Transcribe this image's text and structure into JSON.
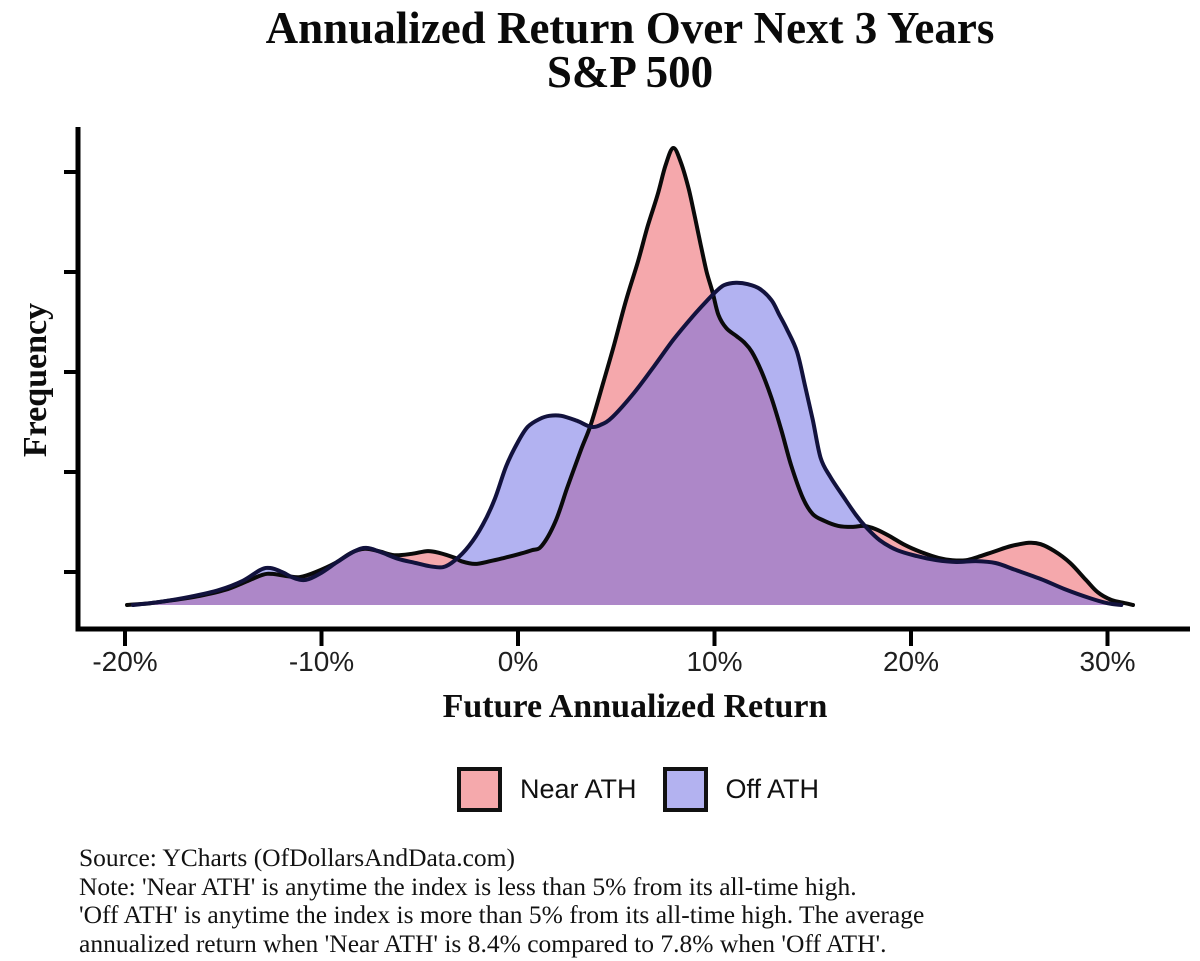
{
  "title": {
    "line1": "Annualized Return Over Next 3 Years",
    "line2": "S&P 500"
  },
  "chart_data": {
    "type": "area",
    "subtype": "kernel-density",
    "title": "Annualized Return Over Next 3 Years",
    "subtitle": "S&P 500",
    "xlabel": "Future Annualized Return",
    "ylabel": "Frequency",
    "xlim": [
      -22,
      34
    ],
    "ylim": [
      0,
      1.05
    ],
    "grid": false,
    "legend_position": "bottom-center",
    "x_ticks": [
      {
        "value": -20,
        "label": "-20%"
      },
      {
        "value": -10,
        "label": "-10%"
      },
      {
        "value": 0,
        "label": "0%"
      },
      {
        "value": 10,
        "label": "10%"
      },
      {
        "value": 20,
        "label": "20%"
      },
      {
        "value": 30,
        "label": "30%"
      }
    ],
    "y_axis": {
      "label": "Frequency",
      "unlabeled_tick_count": 5
    },
    "series": [
      {
        "name": "Near ATH",
        "fill": "rgba(235,81,89,0.5)",
        "stroke": "#0a0a0a",
        "swatch": "#F5A9AC",
        "points": [
          [
            -19.9,
            0
          ],
          [
            -18.7,
            0.004
          ],
          [
            -17.5,
            0.011
          ],
          [
            -16.2,
            0.02
          ],
          [
            -14.9,
            0.033
          ],
          [
            -13.9,
            0.05
          ],
          [
            -13,
            0.066
          ],
          [
            -12.5,
            0.068
          ],
          [
            -11.7,
            0.063
          ],
          [
            -11.1,
            0.061
          ],
          [
            -10.3,
            0.072
          ],
          [
            -9.3,
            0.092
          ],
          [
            -8.5,
            0.114
          ],
          [
            -7.8,
            0.123
          ],
          [
            -7.1,
            0.118
          ],
          [
            -6.3,
            0.109
          ],
          [
            -5.4,
            0.112
          ],
          [
            -4.6,
            0.118
          ],
          [
            -4,
            0.114
          ],
          [
            -3.2,
            0.103
          ],
          [
            -2.9,
            0.096
          ],
          [
            -2.2,
            0.09
          ],
          [
            -1.4,
            0.096
          ],
          [
            -0.7,
            0.103
          ],
          [
            0.1,
            0.112
          ],
          [
            0.7,
            0.12
          ],
          [
            1.2,
            0.129
          ],
          [
            1.9,
            0.182
          ],
          [
            2.5,
            0.256
          ],
          [
            3.2,
            0.339
          ],
          [
            3.7,
            0.394
          ],
          [
            4.3,
            0.481
          ],
          [
            4.9,
            0.571
          ],
          [
            5.5,
            0.667
          ],
          [
            6.1,
            0.751
          ],
          [
            6.6,
            0.829
          ],
          [
            7.1,
            0.897
          ],
          [
            7.5,
            0.961
          ],
          [
            7.9,
            1
          ],
          [
            8.3,
            0.967
          ],
          [
            8.7,
            0.908
          ],
          [
            9,
            0.849
          ],
          [
            9.3,
            0.788
          ],
          [
            9.6,
            0.729
          ],
          [
            9.9,
            0.685
          ],
          [
            10.2,
            0.635
          ],
          [
            10.6,
            0.606
          ],
          [
            11.1,
            0.589
          ],
          [
            11.5,
            0.575
          ],
          [
            11.9,
            0.554
          ],
          [
            12.4,
            0.51
          ],
          [
            12.9,
            0.453
          ],
          [
            13.4,
            0.383
          ],
          [
            13.9,
            0.306
          ],
          [
            14.5,
            0.234
          ],
          [
            15,
            0.199
          ],
          [
            15.6,
            0.184
          ],
          [
            16.3,
            0.173
          ],
          [
            17,
            0.171
          ],
          [
            17.6,
            0.173
          ],
          [
            18.2,
            0.166
          ],
          [
            18.9,
            0.151
          ],
          [
            19.7,
            0.131
          ],
          [
            20.5,
            0.116
          ],
          [
            21.4,
            0.103
          ],
          [
            22.1,
            0.098
          ],
          [
            22.8,
            0.098
          ],
          [
            23.4,
            0.105
          ],
          [
            24.3,
            0.118
          ],
          [
            25.1,
            0.129
          ],
          [
            26,
            0.136
          ],
          [
            26.6,
            0.133
          ],
          [
            27.3,
            0.118
          ],
          [
            28.1,
            0.092
          ],
          [
            28.9,
            0.055
          ],
          [
            29.5,
            0.028
          ],
          [
            30.2,
            0.011
          ],
          [
            30.9,
            0.004
          ],
          [
            31.3,
            0
          ]
        ]
      },
      {
        "name": "Off ATH",
        "fill": "rgba(101,101,227,0.5)",
        "stroke": "#12123d",
        "swatch": "#B3B2F0",
        "points": [
          [
            -19.6,
            0
          ],
          [
            -18.2,
            0.007
          ],
          [
            -16.7,
            0.018
          ],
          [
            -15.2,
            0.033
          ],
          [
            -14,
            0.053
          ],
          [
            -13.1,
            0.077
          ],
          [
            -12.6,
            0.081
          ],
          [
            -12,
            0.072
          ],
          [
            -11.4,
            0.059
          ],
          [
            -10.8,
            0.055
          ],
          [
            -10.1,
            0.068
          ],
          [
            -9.2,
            0.094
          ],
          [
            -8.3,
            0.118
          ],
          [
            -7.7,
            0.125
          ],
          [
            -7,
            0.116
          ],
          [
            -6.1,
            0.101
          ],
          [
            -5.2,
            0.092
          ],
          [
            -4.5,
            0.085
          ],
          [
            -3.8,
            0.083
          ],
          [
            -3.2,
            0.098
          ],
          [
            -2.5,
            0.129
          ],
          [
            -1.8,
            0.175
          ],
          [
            -1.2,
            0.23
          ],
          [
            -0.6,
            0.304
          ],
          [
            0,
            0.357
          ],
          [
            0.5,
            0.39
          ],
          [
            1.1,
            0.407
          ],
          [
            1.6,
            0.414
          ],
          [
            2.2,
            0.414
          ],
          [
            3,
            0.403
          ],
          [
            3.7,
            0.39
          ],
          [
            4.2,
            0.394
          ],
          [
            4.8,
            0.411
          ],
          [
            5.9,
            0.464
          ],
          [
            6.9,
            0.521
          ],
          [
            7.9,
            0.58
          ],
          [
            8.9,
            0.632
          ],
          [
            9.6,
            0.665
          ],
          [
            10.1,
            0.687
          ],
          [
            10.5,
            0.7
          ],
          [
            11.1,
            0.705
          ],
          [
            11.7,
            0.702
          ],
          [
            12.3,
            0.692
          ],
          [
            12.9,
            0.667
          ],
          [
            13.3,
            0.635
          ],
          [
            13.7,
            0.602
          ],
          [
            14.2,
            0.554
          ],
          [
            14.6,
            0.481
          ],
          [
            15,
            0.405
          ],
          [
            15.4,
            0.322
          ],
          [
            15.9,
            0.28
          ],
          [
            16.5,
            0.241
          ],
          [
            17.2,
            0.197
          ],
          [
            17.7,
            0.171
          ],
          [
            18.4,
            0.142
          ],
          [
            19.3,
            0.12
          ],
          [
            20.3,
            0.107
          ],
          [
            21.3,
            0.098
          ],
          [
            22.3,
            0.094
          ],
          [
            23.3,
            0.096
          ],
          [
            24.3,
            0.092
          ],
          [
            25.3,
            0.077
          ],
          [
            26.6,
            0.057
          ],
          [
            27.8,
            0.035
          ],
          [
            29.1,
            0.015
          ],
          [
            30,
            0.004
          ],
          [
            30.7,
            0
          ]
        ]
      }
    ]
  },
  "axes": {
    "x_title": "Future Annualized Return",
    "y_title": "Frequency"
  },
  "legend": {
    "near_label": "Near ATH",
    "off_label": "Off ATH"
  },
  "caption": {
    "lines": [
      "Source: YCharts (OfDollarsAndData.com)",
      "Note: 'Near ATH' is anytime the index is less than 5% from its all-time high.",
      "'Off ATH' is anytime the index is more than 5% from its all-time high. The average",
      "annualized return when 'Near ATH' is 8.4% compared to 7.8% when 'Off ATH'."
    ]
  }
}
